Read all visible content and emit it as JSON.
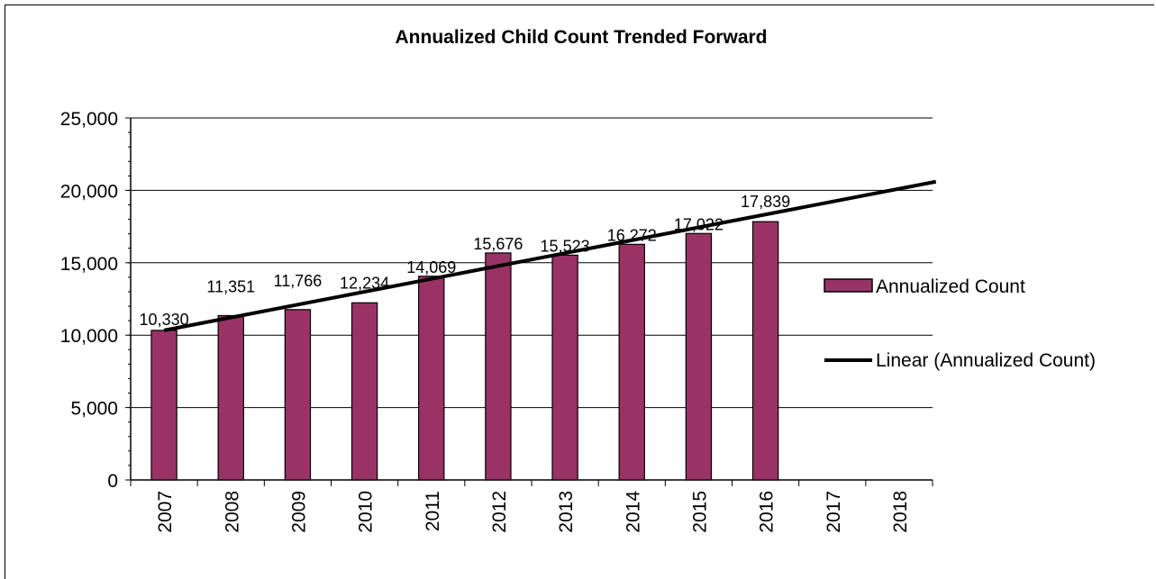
{
  "chart_data": {
    "type": "bar",
    "title": "Annualized Child Count Trended Forward",
    "xlabel": "",
    "ylabel": "",
    "categories": [
      "2007",
      "2008",
      "2009",
      "2010",
      "2011",
      "2012",
      "2013",
      "2014",
      "2015",
      "2016",
      "2017",
      "2018"
    ],
    "series": [
      {
        "name": "Annualized Count",
        "type": "bar",
        "color": "#993366",
        "values": [
          10330,
          11351,
          11766,
          12234,
          14069,
          15676,
          15523,
          16272,
          17022,
          17839,
          null,
          null
        ],
        "labels": [
          "10,330",
          "11,351",
          "11,766",
          "12,234",
          "14,069",
          "15,676",
          "15,523",
          "16,272",
          "17,022",
          "17,839",
          "",
          ""
        ]
      },
      {
        "name": "Linear (Annualized Count)",
        "type": "trendline",
        "color": "#000000",
        "start_value": 10330,
        "end_value": 20600,
        "start_category": "2007",
        "end_category": "2018"
      }
    ],
    "y_ticks": [
      "0",
      "5,000",
      "10,000",
      "15,000",
      "20,000",
      "25,000"
    ],
    "ylim": [
      0,
      25000
    ],
    "grid": true,
    "legend": "right"
  }
}
